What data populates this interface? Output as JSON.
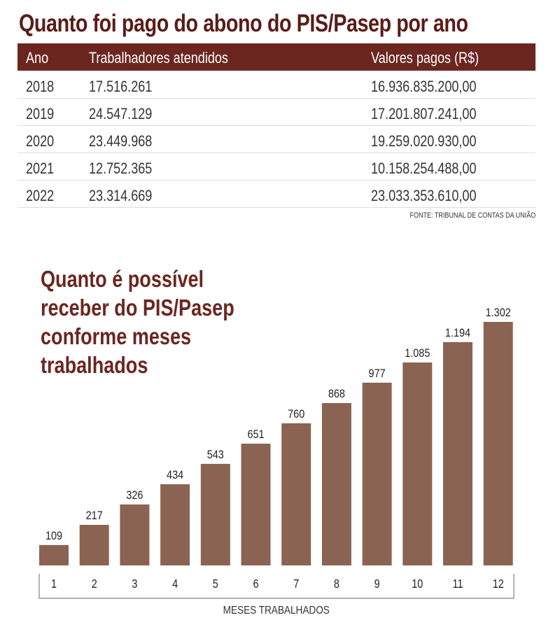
{
  "table": {
    "title": "Quanto foi pago do abono do PIS/Pasep por ano",
    "headers": [
      "Ano",
      "Trabalhadores atendidos",
      "Valores pagos (R$)"
    ],
    "rows": [
      [
        "2018",
        "17.516.261",
        "16.936.835.200,00"
      ],
      [
        "2019",
        "24.547.129",
        "17.201.807.241,00"
      ],
      [
        "2020",
        "23.449.968",
        "19.259.020.930,00"
      ],
      [
        "2021",
        "12.752.365",
        "10.158.254.488,00"
      ],
      [
        "2022",
        "23.314.669",
        "23.033.353.610,00"
      ]
    ],
    "source": "FONTE: TRIBUNAL DE CONTAS DA UNIÃO"
  },
  "chart_data": {
    "type": "bar",
    "title_lines": [
      "Quanto é possível",
      "receber do PIS/Pasep",
      "conforme meses",
      "trabalhados"
    ],
    "categories": [
      "1",
      "2",
      "3",
      "4",
      "5",
      "6",
      "7",
      "8",
      "9",
      "10",
      "11",
      "12"
    ],
    "values": [
      109,
      217,
      326,
      434,
      543,
      651,
      760,
      868,
      977,
      1085,
      1194,
      1302
    ],
    "value_labels": [
      "109",
      "217",
      "326",
      "434",
      "543",
      "651",
      "760",
      "868",
      "977",
      "1.085",
      "1.194",
      "1.302"
    ],
    "xlabel": "MESES TRABALHADOS",
    "ylabel": "",
    "ylim": [
      0,
      1302
    ],
    "grid": false,
    "bar_color": "#8b6352"
  }
}
